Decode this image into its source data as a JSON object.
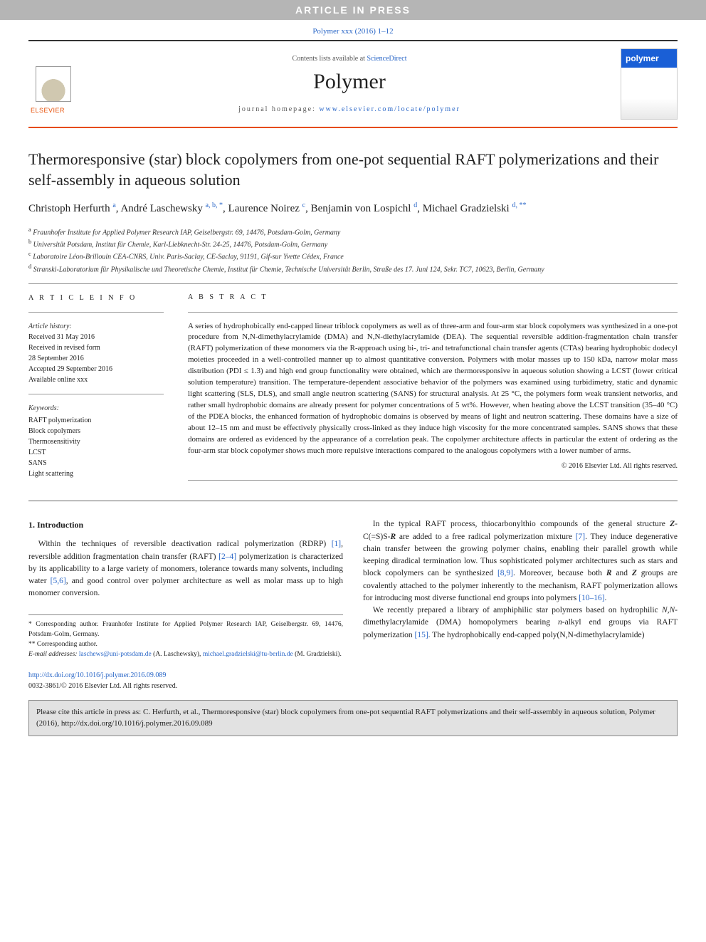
{
  "banner": {
    "text": "ARTICLE IN PRESS"
  },
  "citation_top": "Polymer xxx (2016) 1–12",
  "header": {
    "contents_prefix": "Contents lists available at ",
    "contents_link": "ScienceDirect",
    "journal_name": "Polymer",
    "homepage_prefix": "journal homepage: ",
    "homepage_link": "www.elsevier.com/locate/polymer",
    "cover_label": "polymer"
  },
  "title": "Thermoresponsive (star) block copolymers from one-pot sequential RAFT polymerizations and their self-assembly in aqueous solution",
  "authors_html": "Christoph Herfurth <sup>a</sup>, André Laschewsky <sup>a, b, *</sup>, Laurence Noirez <sup>c</sup>, Benjamin von Lospichl <sup>d</sup>, Michael Gradzielski <sup>d, **</sup>",
  "affiliations": [
    {
      "sup": "a",
      "text": "Fraunhofer Institute for Applied Polymer Research IAP, Geiselbergstr. 69, 14476, Potsdam-Golm, Germany"
    },
    {
      "sup": "b",
      "text": "Universität Potsdam, Institut für Chemie, Karl-Liebknecht-Str. 24-25, 14476, Potsdam-Golm, Germany"
    },
    {
      "sup": "c",
      "text": "Laboratoire Léon-Brillouin CEA-CNRS, Univ. Paris-Saclay, CE-Saclay, 91191, Gif-sur Yvette Cédex, France"
    },
    {
      "sup": "d",
      "text": "Stranski-Laboratorium für Physikalische und Theoretische Chemie, Institut für Chemie, Technische Universität Berlin, Straße des 17. Juni 124, Sekr. TC7, 10623, Berlin, Germany"
    }
  ],
  "article_info": {
    "heading": "A R T I C L E   I N F O",
    "history_label": "Article history:",
    "history": [
      "Received 31 May 2016",
      "Received in revised form",
      "28 September 2016",
      "Accepted 29 September 2016",
      "Available online xxx"
    ],
    "keywords_label": "Keywords:",
    "keywords": [
      "RAFT polymerization",
      "Block copolymers",
      "Thermosensitivity",
      "LCST",
      "SANS",
      "Light scattering"
    ]
  },
  "abstract": {
    "heading": "A B S T R A C T",
    "text": "A series of hydrophobically end-capped linear triblock copolymers as well as of three-arm and four-arm star block copolymers was synthesized in a one-pot procedure from N,N-dimethylacrylamide (DMA) and N,N-diethylacrylamide (DEA). The sequential reversible addition-fragmentation chain transfer (RAFT) polymerization of these monomers via the R-approach using bi-, tri- and tetrafunctional chain transfer agents (CTAs) bearing hydrophobic dodecyl moieties proceeded in a well-controlled manner up to almost quantitative conversion. Polymers with molar masses up to 150 kDa, narrow molar mass distribution (PDI ≤ 1.3) and high end group functionality were obtained, which are thermoresponsive in aqueous solution showing a LCST (lower critical solution temperature) transition. The temperature-dependent associative behavior of the polymers was examined using turbidimetry, static and dynamic light scattering (SLS, DLS), and small angle neutron scattering (SANS) for structural analysis. At 25 °C, the polymers form weak transient networks, and rather small hydrophobic domains are already present for polymer concentrations of 5 wt%. However, when heating above the LCST transition (35–40 °C) of the PDEA blocks, the enhanced formation of hydrophobic domains is observed by means of light and neutron scattering. These domains have a size of about 12–15 nm and must be effectively physically cross-linked as they induce high viscosity for the more concentrated samples. SANS shows that these domains are ordered as evidenced by the appearance of a correlation peak. The copolymer architecture affects in particular the extent of ordering as the four-arm star block copolymer shows much more repulsive interactions compared to the analogous copolymers with a lower number of arms.",
    "copyright": "© 2016 Elsevier Ltd. All rights reserved."
  },
  "intro": {
    "heading": "1. Introduction",
    "col1_html": "Within the techniques of reversible deactivation radical polymerization (RDRP) <a>[1]</a>, reversible addition fragmentation chain transfer (RAFT) <a>[2–4]</a> polymerization is characterized by its applicability to a large variety of monomers, tolerance towards many solvents, including water <a>[5,6]</a>, and good control over polymer architecture as well as molar mass up to high monomer conversion.",
    "col2_html": "In the typical RAFT process, thiocarbonylthio compounds of the general structure <b><i>Z</i></b>-C(=S)S-<b><i>R</i></b> are added to a free radical polymerization mixture <a>[7]</a>. They induce degenerative chain transfer between the growing polymer chains, enabling their parallel growth while keeping diradical termination low. Thus sophisticated polymer architectures such as stars and block copolymers can be synthesized <a>[8,9]</a>. Moreover, because both <b><i>R</i></b> and <b><i>Z</i></b> groups are covalently attached to the polymer inherently to the mechanism, RAFT polymerization allows for introducing most diverse functional end groups into polymers <a>[10–16]</a>.",
    "col2_p2_html": "We recently prepared a library of amphiphilic star polymers based on hydrophilic <i>N,N</i>-dimethylacrylamide (DMA) homopolymers bearing <i>n</i>-alkyl end groups via RAFT polymerization <a>[15]</a>. The hydrophobically end-capped poly(N,N-dimethylacrylamide)"
  },
  "footnotes": {
    "f1": "* Corresponding author. Fraunhofer Institute for Applied Polymer Research IAP, Geiselbergstr. 69, 14476, Potsdam-Golm, Germany.",
    "f2": "** Corresponding author.",
    "emails_label": "E-mail addresses:",
    "email1": "laschews@uni-potsdam.de",
    "email1_name": " (A. Laschewsky), ",
    "email2": "michael.gradzielski@tu-berlin.de",
    "email2_name": " (M. Gradzielski)."
  },
  "doi": {
    "link": "http://dx.doi.org/10.1016/j.polymer.2016.09.089",
    "issn": "0032-3861/© 2016 Elsevier Ltd. All rights reserved."
  },
  "cite_box": "Please cite this article in press as: C. Herfurth, et al., Thermoresponsive (star) block copolymers from one-pot sequential RAFT polymerizations and their self-assembly in aqueous solution, Polymer (2016), http://dx.doi.org/10.1016/j.polymer.2016.09.089"
}
